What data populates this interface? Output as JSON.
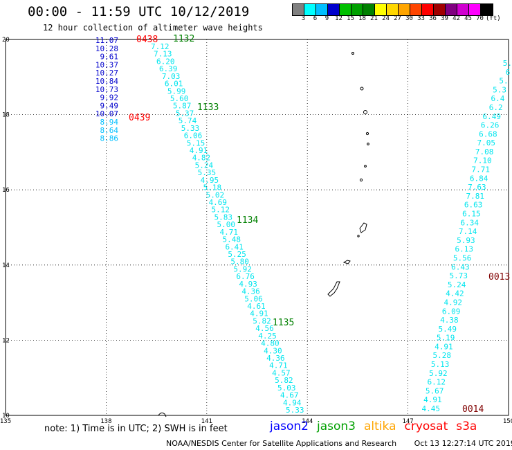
{
  "title": "00:00 - 11:59 UTC 10/12/2019",
  "subtitle": "12 hour collection of altimeter wave heights",
  "colorbar": {
    "labels": [
      "3",
      "6",
      "9",
      "12",
      "15",
      "18",
      "21",
      "24",
      "27",
      "30",
      "33",
      "36",
      "39",
      "42",
      "45",
      "70",
      "(ft)"
    ],
    "colors": [
      "#808080",
      "#00ffff",
      "#00bfff",
      "#0000cd",
      "#00c000",
      "#00a000",
      "#008000",
      "#ffff00",
      "#ffd700",
      "#ffa500",
      "#ff4500",
      "#ff0000",
      "#a00000",
      "#800080",
      "#d000d0",
      "#ff00ff",
      "#000000"
    ]
  },
  "axes": {
    "lon_ticks": [
      "135",
      "138",
      "141",
      "144",
      "147",
      "150"
    ],
    "lat_ticks": [
      "20",
      "18",
      "16",
      "14",
      "12",
      "10"
    ],
    "lon_range": [
      135,
      150
    ],
    "lat_range": [
      10,
      20
    ]
  },
  "note": "note: 1) Time is in UTC; 2) SWH is in feet",
  "satellites": [
    {
      "name": "jason2",
      "color": "#0000ff"
    },
    {
      "name": "jason3",
      "color": "#00a000"
    },
    {
      "name": "altika",
      "color": "#ffa500"
    },
    {
      "name": "cryosat",
      "color": "#ff0000"
    },
    {
      "name": "s3a",
      "color": "#ff0000"
    }
  ],
  "footer": {
    "agency": "NOAA/NESDIS Center for Satellite Applications and Research",
    "timestamp": "Oct 13 12:27:14 UTC 2019"
  },
  "tracks": {
    "jason2": {
      "color": "#0000cd",
      "values": [
        "11.07",
        "10.28",
        "9.61",
        "10.37",
        "10.27",
        "10.84",
        "10.73",
        "9.92",
        "9.49",
        "10.07",
        "8.94",
        "8.64",
        "8.86"
      ]
    },
    "jason3_a": {
      "color": "#00e5ee",
      "values": [
        "7.12",
        "7.13",
        "6.20",
        "6.39",
        "7.03",
        "6.01",
        "5.99",
        "5.60",
        "5.87",
        "5.37",
        "5.74",
        "5.33",
        "6.06",
        "5.15",
        "4.91",
        "4.82",
        "5.24",
        "5.35",
        "4.95",
        "5.18",
        "5.02",
        "4.69",
        "5.12",
        "5.83",
        "5.00",
        "4.71",
        "5.48",
        "6.41",
        "5.25",
        "5.80",
        "5.92",
        "6.76",
        "4.93",
        "4.36",
        "5.06",
        "4.61",
        "4.91",
        "5.82",
        "4.56",
        "4.25",
        "4.80",
        "4.30",
        "4.36",
        "4.71",
        "4.57",
        "5.82",
        "5.03",
        "4.67",
        "4.94",
        "5.33"
      ]
    },
    "east": {
      "color": "#00e5ee",
      "values": [
        "5.",
        "6",
        "5.",
        "5.3",
        "6.4",
        "6.2",
        "6.49",
        "6.26",
        "6.68",
        "7.05",
        "7.08",
        "7.10",
        "7.71",
        "6.84",
        "7.63",
        "7.81",
        "6.63",
        "6.15",
        "6.34",
        "7.14",
        "5.93",
        "6.13",
        "5.56",
        "6.43",
        "5.73",
        "5.24",
        "4.42",
        "4.92",
        "6.09",
        "4.38",
        "5.49",
        "5.19",
        "4.91",
        "5.28",
        "5.13",
        "5.92",
        "6.12",
        "5.67",
        "4.91",
        "4.45"
      ]
    }
  },
  "time_labels": [
    {
      "text": "0438",
      "color": "#ff0000"
    },
    {
      "text": "0439",
      "color": "#ff0000"
    },
    {
      "text": "1132",
      "color": "#008000"
    },
    {
      "text": "1133",
      "color": "#008000"
    },
    {
      "text": "1134",
      "color": "#008000"
    },
    {
      "text": "1135",
      "color": "#008000"
    },
    {
      "text": "0013",
      "color": "#800000"
    },
    {
      "text": "0014",
      "color": "#800000"
    }
  ]
}
